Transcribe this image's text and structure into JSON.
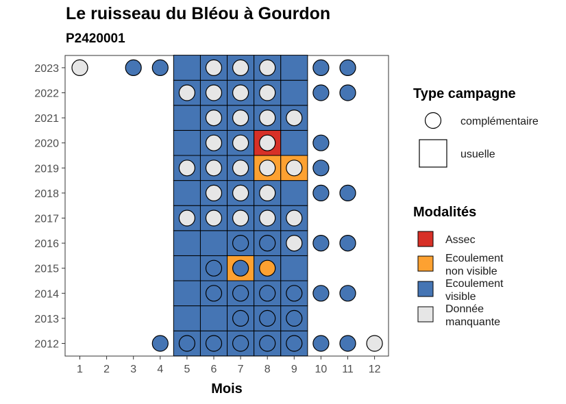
{
  "chart_data": {
    "type": "heatmap",
    "title": "Le ruisseau du Bléou à Gourdon",
    "subtitle": "P2420001",
    "xlabel": "Mois",
    "ylabel": "",
    "x_ticks": [
      "1",
      "2",
      "3",
      "4",
      "5",
      "6",
      "7",
      "8",
      "9",
      "10",
      "11",
      "12"
    ],
    "y_ticks": [
      "2012",
      "2013",
      "2014",
      "2015",
      "2016",
      "2017",
      "2018",
      "2019",
      "2020",
      "2021",
      "2022",
      "2023"
    ],
    "xlim": [
      0.5,
      12.5
    ],
    "ylim": [
      2011.5,
      2023.5
    ],
    "grid": false,
    "legend_campagne": {
      "title": "Type campagne",
      "items": [
        {
          "key": "complementaire",
          "label": "complémentaire",
          "shape": "circle"
        },
        {
          "key": "usuelle",
          "label": "usuelle",
          "shape": "square"
        }
      ]
    },
    "legend_modalites": {
      "title": "Modalités",
      "items": [
        {
          "key": "A",
          "label_lines": [
            "Assec"
          ],
          "color": "#d73027"
        },
        {
          "key": "N",
          "label_lines": [
            "Ecoulement",
            "non visible"
          ],
          "color": "#fda131"
        },
        {
          "key": "V",
          "label_lines": [
            "Ecoulement",
            "visible"
          ],
          "color": "#4575b4"
        },
        {
          "key": "M",
          "label_lines": [
            "Donnée",
            "manquante"
          ],
          "color": "#e6e6e6"
        }
      ]
    },
    "usuelle": [
      {
        "year": 2012,
        "cells": {
          "5": "V",
          "6": "V",
          "7": "V",
          "8": "V",
          "9": "V"
        }
      },
      {
        "year": 2013,
        "cells": {
          "5": "V",
          "6": "V",
          "7": "V",
          "8": "V",
          "9": "V"
        }
      },
      {
        "year": 2014,
        "cells": {
          "5": "V",
          "6": "V",
          "7": "V",
          "8": "V",
          "9": "V"
        }
      },
      {
        "year": 2015,
        "cells": {
          "5": "V",
          "6": "V",
          "7": "N",
          "8": "V",
          "9": "V"
        }
      },
      {
        "year": 2016,
        "cells": {
          "5": "V",
          "6": "V",
          "7": "V",
          "8": "V",
          "9": "V"
        }
      },
      {
        "year": 2017,
        "cells": {
          "5": "V",
          "6": "V",
          "7": "V",
          "8": "V",
          "9": "V"
        }
      },
      {
        "year": 2018,
        "cells": {
          "5": "V",
          "6": "V",
          "7": "V",
          "8": "V",
          "9": "V"
        }
      },
      {
        "year": 2019,
        "cells": {
          "5": "V",
          "6": "V",
          "7": "V",
          "8": "N",
          "9": "N"
        }
      },
      {
        "year": 2020,
        "cells": {
          "5": "V",
          "6": "V",
          "7": "V",
          "8": "A",
          "9": "V"
        }
      },
      {
        "year": 2021,
        "cells": {
          "5": "V",
          "6": "V",
          "7": "V",
          "8": "V",
          "9": "V"
        }
      },
      {
        "year": 2022,
        "cells": {
          "5": "V",
          "6": "V",
          "7": "V",
          "8": "V",
          "9": "V"
        }
      },
      {
        "year": 2023,
        "cells": {
          "5": "V",
          "6": "V",
          "7": "V",
          "8": "V",
          "9": "V"
        }
      }
    ],
    "complementaire": [
      {
        "year": 2012,
        "points": {
          "4": "V",
          "5": "V",
          "6": "V",
          "7": "V",
          "8": "V",
          "9": "V",
          "10": "V",
          "11": "V",
          "12": "M"
        }
      },
      {
        "year": 2013,
        "points": {
          "7": "V",
          "8": "V",
          "9": "V"
        }
      },
      {
        "year": 2014,
        "points": {
          "6": "V",
          "7": "V",
          "8": "V",
          "9": "V",
          "10": "V",
          "11": "V"
        }
      },
      {
        "year": 2015,
        "points": {
          "6": "V",
          "7": "V",
          "8": "N"
        }
      },
      {
        "year": 2016,
        "points": {
          "7": "V",
          "8": "V",
          "9": "M",
          "10": "V",
          "11": "V"
        }
      },
      {
        "year": 2017,
        "points": {
          "5": "M",
          "6": "M",
          "7": "M",
          "8": "M",
          "9": "M"
        }
      },
      {
        "year": 2018,
        "points": {
          "6": "M",
          "7": "M",
          "8": "M",
          "10": "V",
          "11": "V"
        }
      },
      {
        "year": 2019,
        "points": {
          "5": "M",
          "6": "M",
          "7": "M",
          "8": "M",
          "9": "M",
          "10": "V"
        }
      },
      {
        "year": 2020,
        "points": {
          "6": "M",
          "7": "M",
          "8": "M",
          "10": "V"
        }
      },
      {
        "year": 2021,
        "points": {
          "6": "M",
          "7": "M",
          "8": "M",
          "9": "M"
        }
      },
      {
        "year": 2022,
        "points": {
          "5": "M",
          "6": "M",
          "7": "M",
          "8": "M",
          "10": "V",
          "11": "V"
        }
      },
      {
        "year": 2023,
        "points": {
          "1": "M",
          "3": "V",
          "4": "V",
          "6": "M",
          "7": "M",
          "8": "M",
          "10": "V",
          "11": "V"
        }
      }
    ]
  }
}
